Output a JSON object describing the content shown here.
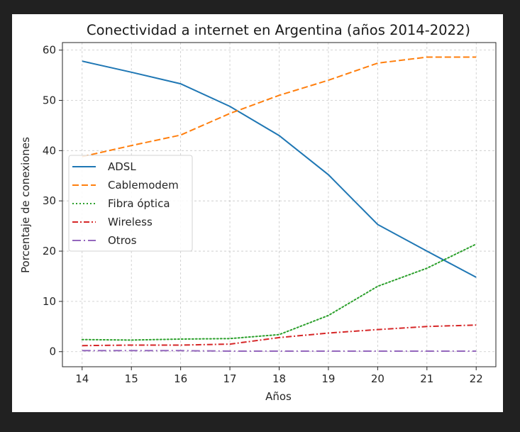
{
  "chart_data": {
    "type": "line",
    "title": "Conectividad a internet en Argentina (años 2014-2022)",
    "xlabel": "Años",
    "ylabel": "Porcentaje de conexiones",
    "x": [
      14,
      15,
      16,
      17,
      18,
      19,
      20,
      21,
      22
    ],
    "xlim": [
      13.6,
      22.4
    ],
    "ylim": [
      -3,
      61.5
    ],
    "xticks": [
      14,
      15,
      16,
      17,
      18,
      19,
      20,
      21,
      22
    ],
    "yticks": [
      0,
      10,
      20,
      30,
      40,
      50,
      60
    ],
    "grid": true,
    "legend_position": "center-left",
    "series": [
      {
        "name": "ADSL",
        "color": "#1f77b4",
        "dash": "solid",
        "values": [
          57.8,
          55.6,
          53.3,
          48.8,
          43.0,
          35.2,
          25.3,
          20.0,
          14.8
        ]
      },
      {
        "name": "Cablemodem",
        "color": "#ff7f0e",
        "dash": "dashed",
        "values": [
          38.8,
          41.0,
          43.1,
          47.4,
          51.0,
          54.0,
          57.4,
          58.6,
          58.6
        ]
      },
      {
        "name": "Fibra óptica",
        "color": "#2ca02c",
        "dash": "dotted",
        "values": [
          2.4,
          2.3,
          2.5,
          2.6,
          3.4,
          7.2,
          13.0,
          16.6,
          21.4
        ]
      },
      {
        "name": "Wireless",
        "color": "#d62728",
        "dash": "dashdot",
        "values": [
          1.2,
          1.3,
          1.3,
          1.5,
          2.8,
          3.7,
          4.4,
          5.0,
          5.3
        ]
      },
      {
        "name": "Otros",
        "color": "#9467bd",
        "dash": "dashdotlong",
        "values": [
          0.2,
          0.2,
          0.2,
          0.1,
          0.1,
          0.1,
          0.1,
          0.1,
          0.1
        ]
      }
    ]
  }
}
